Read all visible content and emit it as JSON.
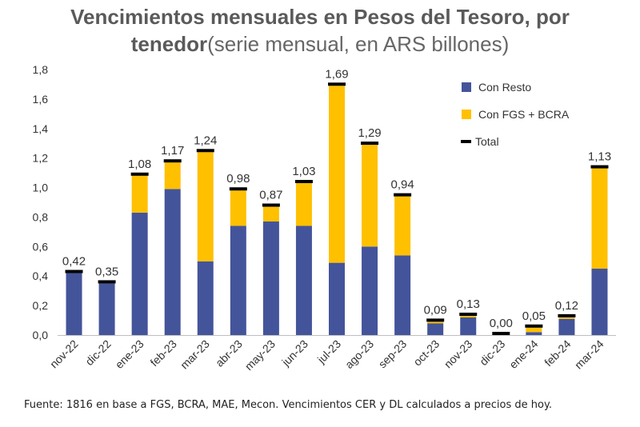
{
  "title": {
    "line1": "Vencimientos mensuales en Pesos del Tesoro, por",
    "line2_bold": "tenedor",
    "line2_light": "(serie mensual, en ARS billones)"
  },
  "chart_data": {
    "type": "bar",
    "stacked": true,
    "categories": [
      "nov-22",
      "dic-22",
      "ene-23",
      "feb-23",
      "mar-23",
      "abr-23",
      "may-23",
      "jun-23",
      "jul-23",
      "ago-23",
      "sep-23",
      "oct-23",
      "nov-23",
      "dic-23",
      "ene-24",
      "feb-24",
      "mar-24"
    ],
    "series": [
      {
        "name": "Con Resto",
        "color": "#44549a",
        "values": [
          0.42,
          0.35,
          0.83,
          0.99,
          0.5,
          0.74,
          0.77,
          0.74,
          0.49,
          0.6,
          0.54,
          0.08,
          0.12,
          0.0,
          0.02,
          0.11,
          0.45
        ]
      },
      {
        "name": "Con FGS + BCRA",
        "color": "#ffc000",
        "values": [
          0.0,
          0.0,
          0.25,
          0.18,
          0.74,
          0.24,
          0.1,
          0.29,
          1.2,
          0.69,
          0.4,
          0.01,
          0.01,
          0.0,
          0.03,
          0.01,
          0.68
        ]
      }
    ],
    "total": {
      "name": "Total",
      "color": "#000000",
      "values": [
        0.42,
        0.35,
        1.08,
        1.17,
        1.24,
        0.98,
        0.87,
        1.03,
        1.69,
        1.29,
        0.94,
        0.09,
        0.13,
        0.0,
        0.05,
        0.12,
        1.13
      ]
    },
    "data_labels": [
      "0,42",
      "0,35",
      "1,08",
      "1,17",
      "1,24",
      "0,98",
      "0,87",
      "1,03",
      "1,69",
      "1,29",
      "0,94",
      "0,09",
      "0,13",
      "0,00",
      "0,05",
      "0,12",
      "1,13"
    ],
    "y_ticks": [
      "0,0",
      "0,2",
      "0,4",
      "0,6",
      "0,8",
      "1,0",
      "1,2",
      "1,4",
      "1,6",
      "1,8"
    ],
    "ylim": [
      0,
      1.8
    ],
    "legend_position": "top-right",
    "grid": false
  },
  "footer": "Fuente: 1816 en base a FGS, BCRA, MAE, Mecon. Vencimientos CER y DL  calculados a precios de hoy."
}
